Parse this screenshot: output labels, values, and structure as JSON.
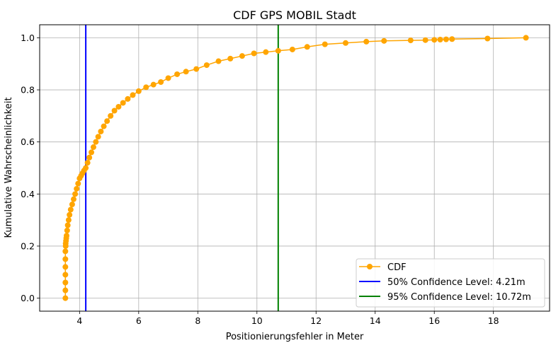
{
  "chart_data": {
    "type": "line",
    "title": "CDF GPS MOBIL Stadt",
    "xlabel": "Positionierungsfehler in Meter",
    "ylabel": "Kumulative Wahrscheinlichkeit",
    "xlim": [
      2.65,
      19.9
    ],
    "ylim": [
      -0.05,
      1.05
    ],
    "xticks": [
      4,
      6,
      8,
      10,
      12,
      14,
      16,
      18
    ],
    "yticks": [
      0.0,
      0.2,
      0.4,
      0.6,
      0.8,
      1.0
    ],
    "xtick_labels": [
      "4",
      "6",
      "8",
      "10",
      "12",
      "14",
      "16",
      "18"
    ],
    "ytick_labels": [
      "0.0",
      "0.2",
      "0.4",
      "0.6",
      "0.8",
      "1.0"
    ],
    "grid": true,
    "legend_position": "bottom-right",
    "series": [
      {
        "name": "CDF",
        "color": "#FFA500",
        "marker": "circle",
        "x": [
          3.52,
          3.52,
          3.52,
          3.52,
          3.52,
          3.52,
          3.52,
          3.53,
          3.53,
          3.54,
          3.55,
          3.56,
          3.58,
          3.6,
          3.63,
          3.66,
          3.7,
          3.75,
          3.8,
          3.85,
          3.9,
          3.95,
          4.0,
          4.05,
          4.1,
          4.15,
          4.21,
          4.27,
          4.33,
          4.4,
          4.47,
          4.55,
          4.63,
          4.72,
          4.82,
          4.93,
          5.05,
          5.18,
          5.32,
          5.47,
          5.63,
          5.8,
          6.0,
          6.25,
          6.5,
          6.75,
          7.0,
          7.3,
          7.6,
          7.95,
          8.3,
          8.7,
          9.1,
          9.5,
          9.9,
          10.3,
          10.72,
          11.2,
          11.7,
          12.3,
          13.0,
          13.7,
          14.3,
          15.2,
          15.7,
          16.0,
          16.2,
          16.4,
          16.6,
          17.8,
          19.1
        ],
        "y": [
          0.0,
          0.03,
          0.06,
          0.09,
          0.12,
          0.15,
          0.18,
          0.2,
          0.21,
          0.22,
          0.23,
          0.24,
          0.26,
          0.28,
          0.3,
          0.32,
          0.34,
          0.36,
          0.38,
          0.4,
          0.42,
          0.44,
          0.46,
          0.47,
          0.48,
          0.49,
          0.5,
          0.52,
          0.54,
          0.56,
          0.58,
          0.6,
          0.62,
          0.64,
          0.66,
          0.68,
          0.7,
          0.72,
          0.735,
          0.75,
          0.765,
          0.78,
          0.795,
          0.81,
          0.82,
          0.83,
          0.845,
          0.86,
          0.87,
          0.88,
          0.895,
          0.91,
          0.92,
          0.93,
          0.94,
          0.945,
          0.95,
          0.955,
          0.965,
          0.975,
          0.98,
          0.985,
          0.988,
          0.99,
          0.991,
          0.992,
          0.993,
          0.994,
          0.995,
          0.997,
          1.0
        ]
      },
      {
        "name": "50% Confidence Level: 4.21m",
        "color": "#0000FF",
        "vline": 4.21
      },
      {
        "name": "95% Confidence Level: 10.72m",
        "color": "#008000",
        "vline": 10.72
      }
    ]
  }
}
